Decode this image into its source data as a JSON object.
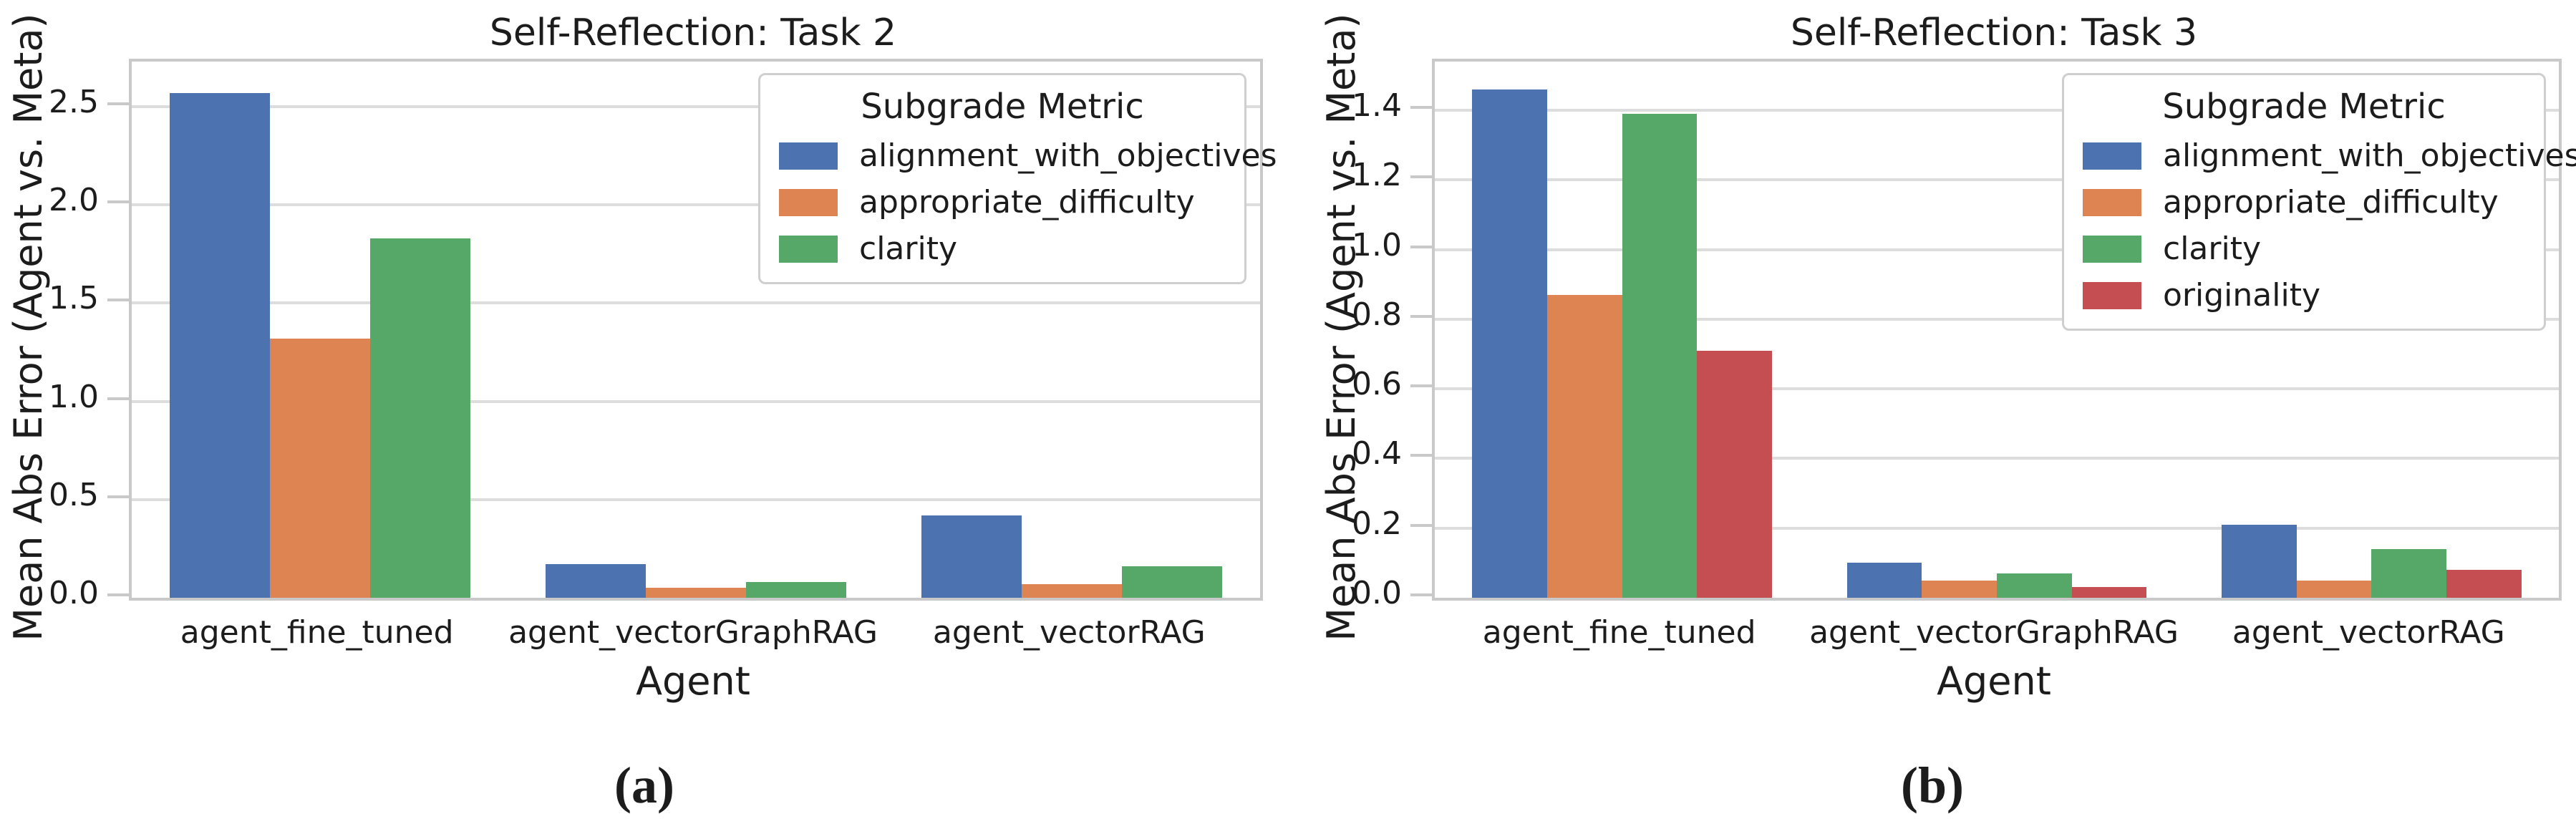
{
  "figure": {
    "background": "#ffffff",
    "text_color": "#1c1c1c",
    "spine_color": "#c9c9c9",
    "grid_color": "#dddddd"
  },
  "chart_data": [
    {
      "type": "bar",
      "title": "Self-Reflection: Task 2",
      "xlabel": "Agent",
      "ylabel": "Mean Abs Error (Agent vs. Meta)",
      "caption_label": "(a)",
      "legend_title": "Subgrade Metric",
      "legend_position": "upper right",
      "grid": true,
      "categories": [
        "agent_fine_tuned",
        "agent_vectorGraphRAG",
        "agent_vectorRAG"
      ],
      "series": [
        {
          "name": "alignment_with_objectives",
          "color": "#4c72b0",
          "values": [
            2.57,
            0.17,
            0.42
          ]
        },
        {
          "name": "appropriate_difficulty",
          "color": "#dd8452",
          "values": [
            1.32,
            0.05,
            0.07
          ]
        },
        {
          "name": "clarity",
          "color": "#55a868",
          "values": [
            1.83,
            0.08,
            0.16
          ]
        }
      ],
      "yticks": [
        0.0,
        0.5,
        1.0,
        1.5,
        2.0,
        2.5
      ],
      "ylim": [
        0,
        2.73
      ]
    },
    {
      "type": "bar",
      "title": "Self-Reflection: Task 3",
      "xlabel": "Agent",
      "ylabel": "Mean Abs Error (Agent vs. Meta)",
      "caption_label": "(b)",
      "legend_title": "Subgrade Metric",
      "legend_position": "upper right",
      "grid": true,
      "categories": [
        "agent_fine_tuned",
        "agent_vectorGraphRAG",
        "agent_vectorRAG"
      ],
      "series": [
        {
          "name": "alignment_with_objectives",
          "color": "#4c72b0",
          "values": [
            1.46,
            0.1,
            0.21
          ]
        },
        {
          "name": "appropriate_difficulty",
          "color": "#dd8452",
          "values": [
            0.87,
            0.05,
            0.05
          ]
        },
        {
          "name": "clarity",
          "color": "#55a868",
          "values": [
            1.39,
            0.07,
            0.14
          ]
        },
        {
          "name": "originality",
          "color": "#c44e52",
          "values": [
            0.71,
            0.03,
            0.08
          ]
        }
      ],
      "yticks": [
        0.0,
        0.2,
        0.4,
        0.6,
        0.8,
        1.0,
        1.2,
        1.4
      ],
      "ylim": [
        0,
        1.54
      ]
    }
  ]
}
